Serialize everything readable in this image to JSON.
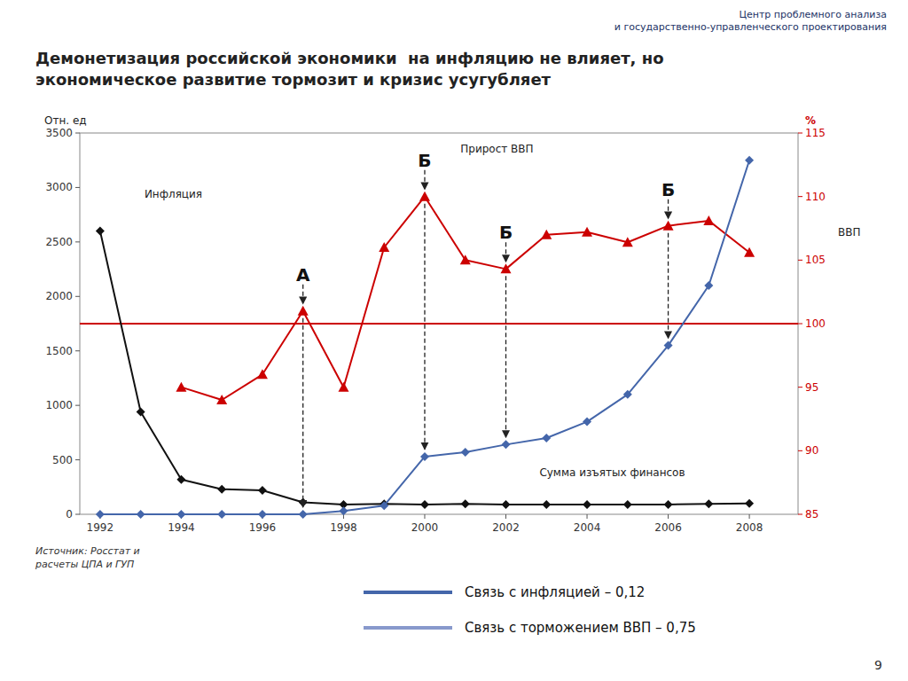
{
  "chart_data": {
    "type": "line",
    "title": "Демонетизация российской экономики  на инфляцию не влияет, но\nэкономическое развитие тормозит и кризис усугубляет",
    "header": "Центр проблемного анализа\nи государственно-управленческого проектирования",
    "source": "Источник: Росстат и\nрасчеты ЦПА и ГУП",
    "page_number": "9",
    "ylabel": "Отн. ед",
    "y2label": "%",
    "y2label_side": "ВВП",
    "x": [
      1992,
      1993,
      1994,
      1995,
      1996,
      1997,
      1998,
      1999,
      2000,
      2001,
      2002,
      2003,
      2004,
      2005,
      2006,
      2007,
      2008
    ],
    "xlim": [
      1991.5,
      2009.2
    ],
    "xticks": [
      1992,
      1994,
      1996,
      1998,
      2000,
      2002,
      2004,
      2006,
      2008
    ],
    "ylim": [
      0,
      3500
    ],
    "yticks": [
      0,
      500,
      1000,
      1500,
      2000,
      2500,
      3000,
      3500
    ],
    "y2lim": [
      85,
      115
    ],
    "y2ticks": [
      85,
      90,
      95,
      100,
      105,
      110,
      115
    ],
    "grid": false,
    "series": [
      {
        "name": "Инфляция",
        "color": "#111111",
        "marker": "diamond",
        "values": [
          2600,
          940,
          320,
          230,
          220,
          110,
          90,
          95,
          90,
          95,
          90,
          90,
          90,
          90,
          90,
          95,
          100
        ]
      },
      {
        "name": "Прирост ВВП",
        "color": "#cc0000",
        "marker": "triangle",
        "axis": "y2",
        "values": [
          null,
          null,
          95,
          94,
          96,
          101,
          95,
          106,
          110,
          105,
          104.3,
          107,
          107.2,
          106.4,
          107.7,
          108.1,
          105.6
        ]
      },
      {
        "name": "Сумма изъятых финансов",
        "color": "#4466aa",
        "marker": "diamond",
        "values": [
          0,
          0,
          0,
          0,
          0,
          0,
          30,
          80,
          530,
          570,
          640,
          700,
          850,
          1100,
          1550,
          2100,
          3250
        ]
      }
    ],
    "reference_line": {
      "axis": "y2",
      "value": 100,
      "color": "#cc0000"
    },
    "annotations": [
      {
        "text": "А",
        "x": 1997
      },
      {
        "text": "Б",
        "x": 2000
      },
      {
        "text": "Б",
        "x": 2002
      },
      {
        "text": "Б",
        "x": 2006
      }
    ],
    "legend_entries": [
      {
        "label": "Связь с инфляцией – 0,12",
        "color": "#4466aa"
      },
      {
        "label": "Связь с торможением ВВП – 0,75",
        "color": "#8899cc"
      }
    ]
  }
}
